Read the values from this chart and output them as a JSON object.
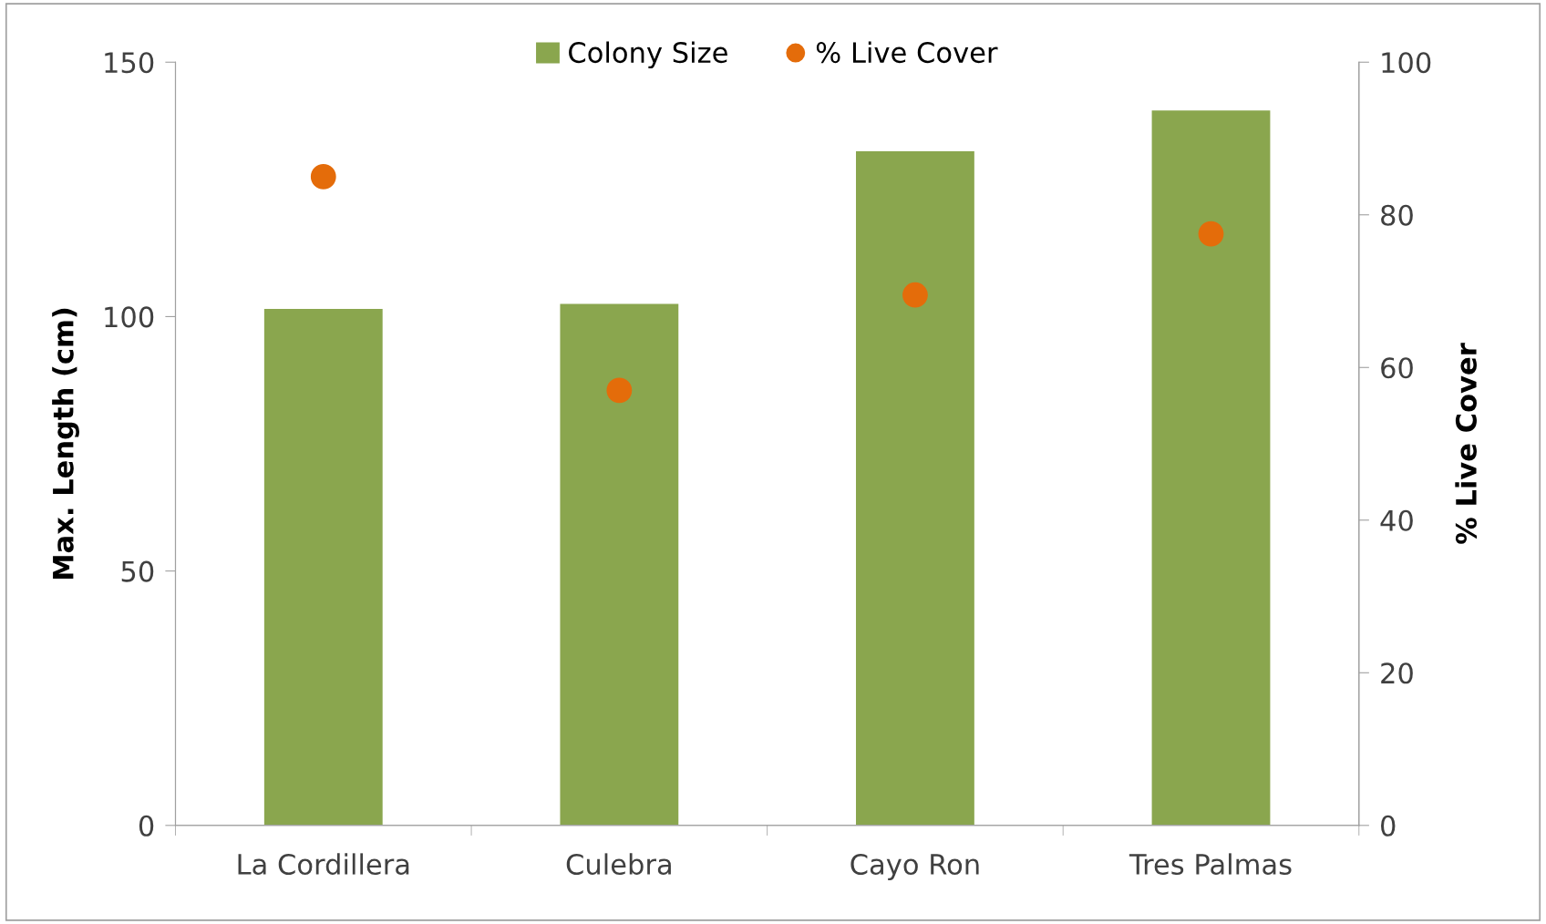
{
  "chart_data": {
    "type": "bar",
    "categories": [
      "La Cordillera",
      "Culebra",
      "Cayo Ron",
      "Tres Palmas"
    ],
    "ylabel": "Max. Length (cm)",
    "y2label": "% Live Cover",
    "ylim": [
      0,
      150
    ],
    "yticks": [
      0,
      50,
      100,
      150
    ],
    "y2lim": [
      0,
      100
    ],
    "y2ticks": [
      0,
      20,
      40,
      60,
      80,
      100
    ],
    "legend": "top",
    "grid": false,
    "series": [
      {
        "name": "Colony Size",
        "color": "#8aa64e",
        "values": [
          101.5,
          102.5,
          132.5,
          140.5
        ]
      },
      {
        "name": "% Live Cover",
        "type": "scatter",
        "axis": "y2",
        "color": "#e46c0a",
        "marker": "circle",
        "values": [
          85,
          57,
          69.5,
          77.5
        ]
      }
    ]
  }
}
